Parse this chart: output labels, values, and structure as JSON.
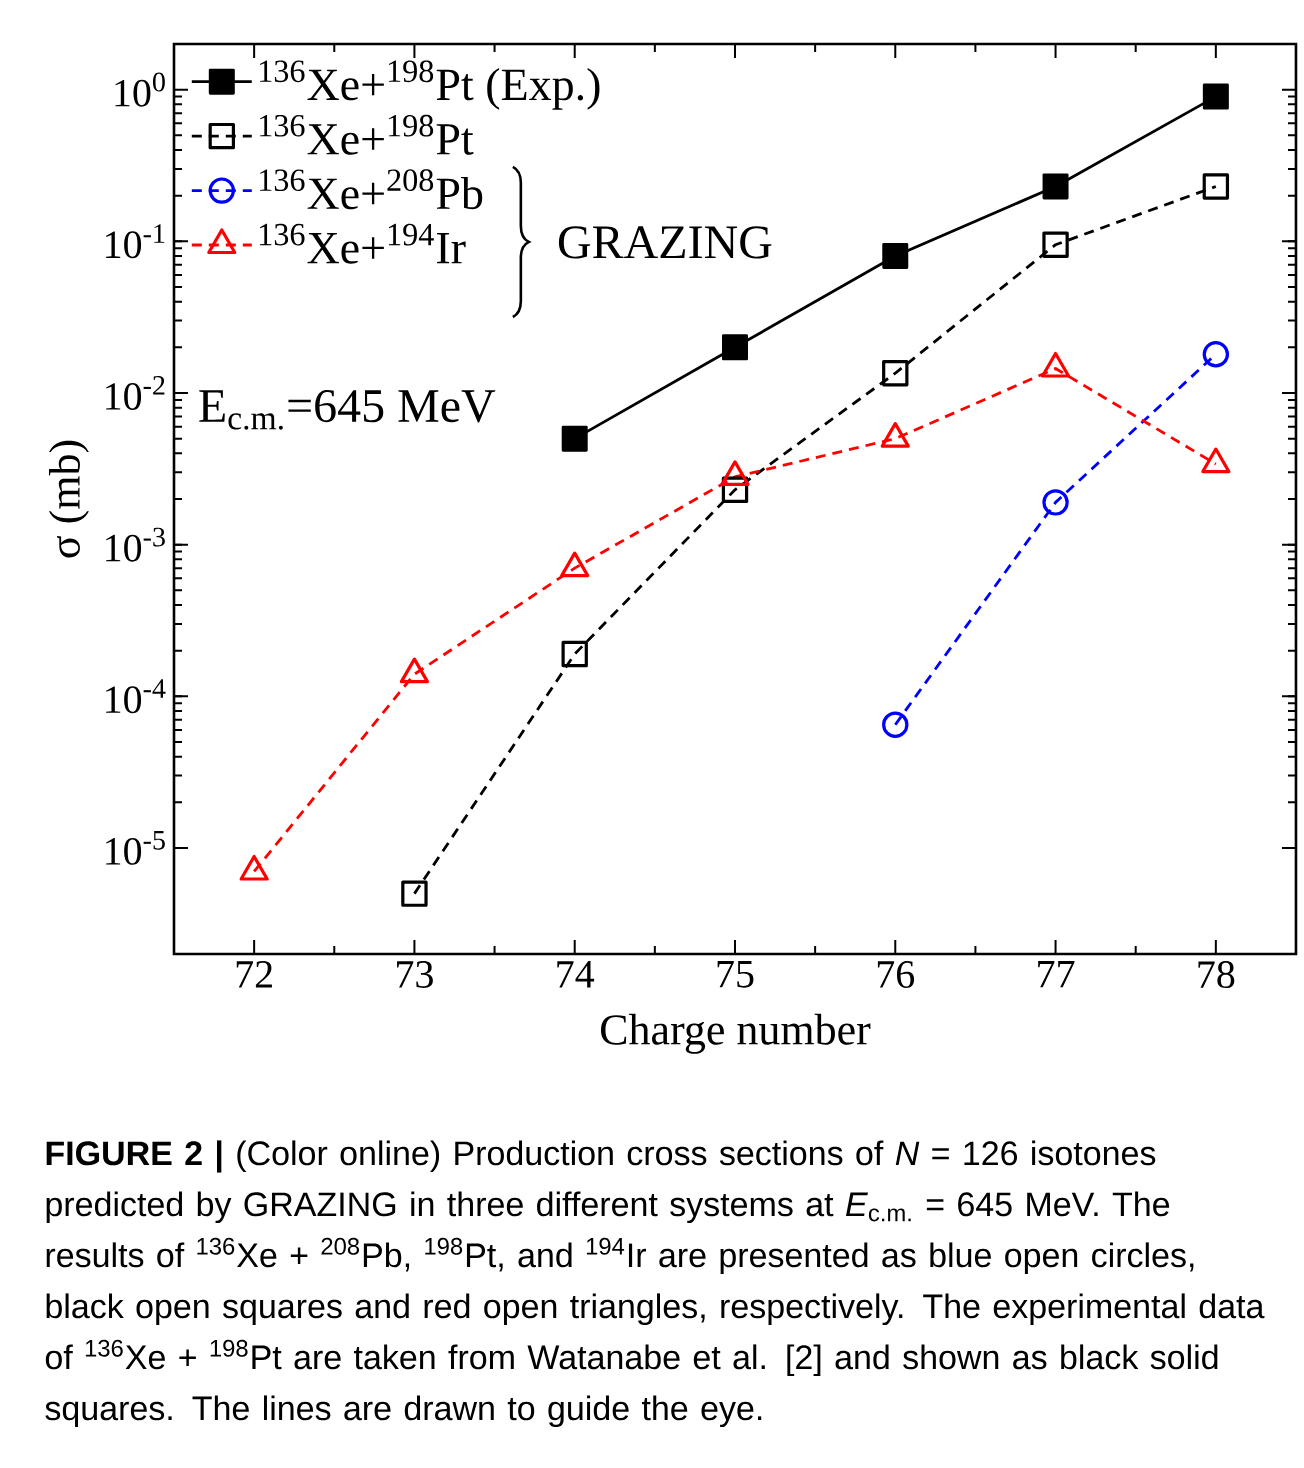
{
  "chart_data": {
    "type": "line",
    "xlabel": "Charge number",
    "ylabel": "σ (mb)",
    "log": "y",
    "legend": "top left",
    "xlim": [
      71.5,
      78.5
    ],
    "xticks": [
      72,
      73,
      74,
      75,
      76,
      77,
      78
    ],
    "ylim": [
      2e-06,
      2
    ],
    "yticks": [
      {
        "value": 1e-05,
        "label": "10$^{-5}$"
      },
      {
        "value": 0.0001,
        "label": "10$^{-4}$"
      },
      {
        "value": 0.001,
        "label": "10$^{-3}$"
      },
      {
        "value": 0.01,
        "label": "10$^{-2}$"
      },
      {
        "value": 0.1,
        "label": "10$^{-1}$"
      },
      {
        "value": 1,
        "label": "10$^{0}$"
      }
    ],
    "series": [
      {
        "name": "$^{136}$Xe+$^{198}$Pt (Exp.)",
        "color": "#000000",
        "marker": "square",
        "line_style": "solid",
        "x": [
          74,
          75,
          76,
          77,
          78
        ],
        "values": [
          0.005,
          0.02,
          0.08,
          0.23,
          0.9
        ]
      },
      {
        "name": "$^{136}$Xe+$^{198}$Pt",
        "color": "#000000",
        "marker": "square",
        "line_style": "dashed",
        "x": [
          73,
          74,
          75,
          76,
          77,
          78
        ],
        "values": [
          5e-06,
          0.00019,
          0.0023,
          0.0135,
          0.095,
          0.23
        ]
      },
      {
        "name": "$^{136}$Xe+$^{208}$Pb",
        "color": "#0000ff",
        "marker": "circle",
        "line_style": "dashed",
        "x": [
          76,
          77,
          78
        ],
        "values": [
          6.5e-05,
          0.0019,
          0.018
        ]
      },
      {
        "name": "$^{136}$Xe+$^{194}$Ir",
        "color": "#ff0000",
        "marker": "triangle",
        "line_style": "dashed",
        "x": [
          72,
          73,
          74,
          75,
          76,
          77,
          78
        ],
        "values": [
          7e-06,
          0.00014,
          0.0007,
          0.0028,
          0.005,
          0.0145,
          0.0034
        ]
      }
    ],
    "annotations": [
      "GRAZING",
      "E$_{c.m.}$=645 MeV",
      "**FIGURE 2 |** (Color online) Production cross sections of *N* = 126 isotones predicted by GRAZING in three different systems at *E*$_{c.m.}$ = 645 MeV. The results of $^{136}$Xe + $^{208}$Pb, $^{198}$Pt, and $^{194}$Ir are presented as blue open circles, black open squares and red open triangles, respectively. The experimental data of $^{136}$Xe + $^{198}$Pt are taken from Watanabe et al. [2] and shown as black solid squares. The lines are drawn to guide the eye."
    ]
  }
}
